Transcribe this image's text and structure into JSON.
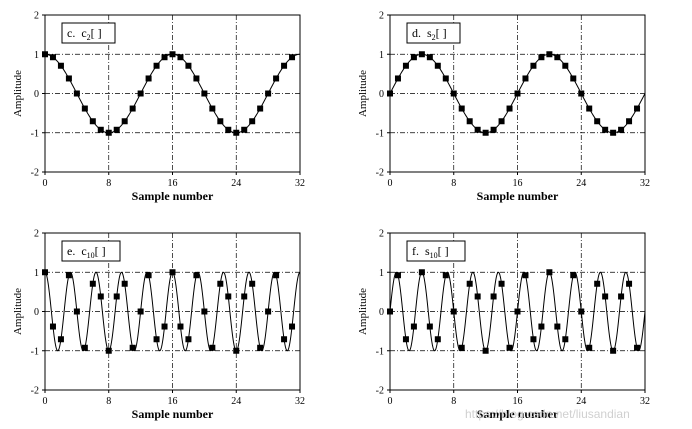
{
  "chart_data": [
    {
      "type": "line",
      "panel_label": {
        "prefix": "c.",
        "sym": "c",
        "sub": "2",
        "suffix": "[ ]"
      },
      "xlabel": "Sample number",
      "ylabel": "Amplitude",
      "xlim": [
        0,
        32
      ],
      "ylim": [
        -2,
        2
      ],
      "xticks": [
        "0",
        "8",
        "16",
        "24",
        "32"
      ],
      "yticks": [
        "2",
        "1",
        "0",
        "-1",
        "-2"
      ],
      "grid": true,
      "series": [
        {
          "marker": "square",
          "x": [
            0,
            1,
            2,
            3,
            4,
            5,
            6,
            7,
            8,
            9,
            10,
            11,
            12,
            13,
            14,
            15,
            16,
            17,
            18,
            19,
            20,
            21,
            22,
            23,
            24,
            25,
            26,
            27,
            28,
            29,
            30,
            31
          ],
          "y": [
            1.0,
            0.924,
            0.707,
            0.383,
            0.0,
            -0.383,
            -0.707,
            -0.924,
            -1.0,
            -0.924,
            -0.707,
            -0.383,
            0.0,
            0.383,
            0.707,
            0.924,
            1.0,
            0.924,
            0.707,
            0.383,
            0.0,
            -0.383,
            -0.707,
            -0.924,
            -1.0,
            -0.924,
            -0.707,
            -0.383,
            0.0,
            0.383,
            0.707,
            0.924
          ]
        }
      ],
      "curve": {
        "kind": "cos",
        "cycles_per_32": 2
      }
    },
    {
      "type": "line",
      "panel_label": {
        "prefix": "d.",
        "sym": "s",
        "sub": "2",
        "suffix": "[ ]"
      },
      "xlabel": "Sample number",
      "ylabel": "Amplitude",
      "xlim": [
        0,
        32
      ],
      "ylim": [
        -2,
        2
      ],
      "xticks": [
        "0",
        "8",
        "16",
        "24",
        "32"
      ],
      "yticks": [
        "2",
        "1",
        "0",
        "-1",
        "-2"
      ],
      "grid": true,
      "series": [
        {
          "marker": "square",
          "x": [
            0,
            1,
            2,
            3,
            4,
            5,
            6,
            7,
            8,
            9,
            10,
            11,
            12,
            13,
            14,
            15,
            16,
            17,
            18,
            19,
            20,
            21,
            22,
            23,
            24,
            25,
            26,
            27,
            28,
            29,
            30,
            31
          ],
          "y": [
            0.0,
            0.383,
            0.707,
            0.924,
            1.0,
            0.924,
            0.707,
            0.383,
            0.0,
            -0.383,
            -0.707,
            -0.924,
            -1.0,
            -0.924,
            -0.707,
            -0.383,
            0.0,
            0.383,
            0.707,
            0.924,
            1.0,
            0.924,
            0.707,
            0.383,
            0.0,
            -0.383,
            -0.707,
            -0.924,
            -1.0,
            -0.924,
            -0.707,
            -0.383
          ]
        }
      ],
      "curve": {
        "kind": "sin",
        "cycles_per_32": 2
      }
    },
    {
      "type": "line",
      "panel_label": {
        "prefix": "e.",
        "sym": "c",
        "sub": "10",
        "suffix": "[ ]"
      },
      "xlabel": "Sample number",
      "ylabel": "Amplitude",
      "xlim": [
        0,
        32
      ],
      "ylim": [
        -2,
        2
      ],
      "xticks": [
        "0",
        "8",
        "16",
        "24",
        "32"
      ],
      "yticks": [
        "2",
        "1",
        "0",
        "-1",
        "-2"
      ],
      "grid": true,
      "series": [
        {
          "marker": "square",
          "x": [
            0,
            1,
            2,
            3,
            4,
            5,
            6,
            7,
            8,
            9,
            10,
            11,
            12,
            13,
            14,
            15,
            16,
            17,
            18,
            19,
            20,
            21,
            22,
            23,
            24,
            25,
            26,
            27,
            28,
            29,
            30,
            31
          ],
          "y": [
            1.0,
            -0.383,
            -0.707,
            0.924,
            0.0,
            -0.924,
            0.707,
            0.383,
            -1.0,
            0.383,
            0.707,
            -0.924,
            0.0,
            0.924,
            -0.707,
            -0.383,
            1.0,
            -0.383,
            -0.707,
            0.924,
            0.0,
            -0.924,
            0.707,
            0.383,
            -1.0,
            0.383,
            0.707,
            -0.924,
            0.0,
            0.924,
            -0.707,
            -0.383
          ]
        }
      ],
      "curve": {
        "kind": "cos",
        "cycles_per_32": 10
      }
    },
    {
      "type": "line",
      "panel_label": {
        "prefix": "f.",
        "sym": "s",
        "sub": "10",
        "suffix": "[ ]"
      },
      "xlabel": "Sample number",
      "ylabel": "Amplitude",
      "xlim": [
        0,
        32
      ],
      "ylim": [
        -2,
        2
      ],
      "xticks": [
        "0",
        "8",
        "16",
        "24",
        "32"
      ],
      "yticks": [
        "2",
        "1",
        "0",
        "-1",
        "-2"
      ],
      "grid": true,
      "series": [
        {
          "marker": "square",
          "x": [
            0,
            1,
            2,
            3,
            4,
            5,
            6,
            7,
            8,
            9,
            10,
            11,
            12,
            13,
            14,
            15,
            16,
            17,
            18,
            19,
            20,
            21,
            22,
            23,
            24,
            25,
            26,
            27,
            28,
            29,
            30,
            31
          ],
          "y": [
            0.0,
            0.924,
            -0.707,
            -0.383,
            1.0,
            -0.383,
            -0.707,
            0.924,
            0.0,
            -0.924,
            0.707,
            0.383,
            -1.0,
            0.383,
            0.707,
            -0.924,
            0.0,
            0.924,
            -0.707,
            -0.383,
            1.0,
            -0.383,
            -0.707,
            0.924,
            0.0,
            -0.924,
            0.707,
            0.383,
            -1.0,
            0.383,
            0.707,
            -0.924
          ]
        }
      ],
      "curve": {
        "kind": "sin",
        "cycles_per_32": 10
      }
    }
  ],
  "watermark": "https://blog.csdn.net/liusandian"
}
